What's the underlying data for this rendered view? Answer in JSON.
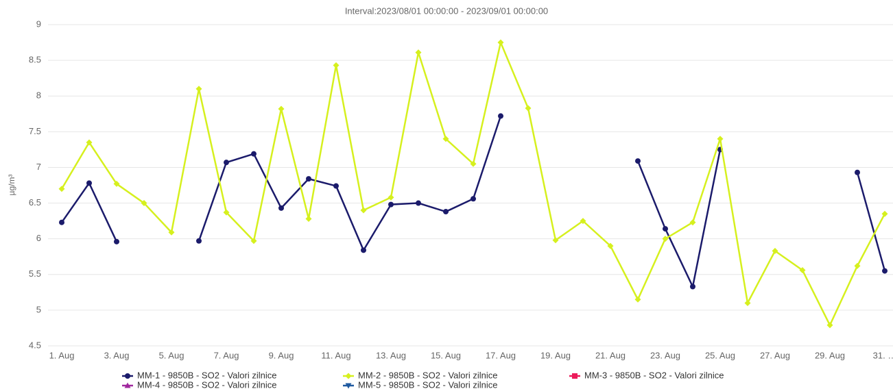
{
  "chart_data": {
    "type": "line",
    "title": "Interval:2023/08/01 00:00:00 - 2023/09/01 00:00:00",
    "y_label": "µg/m³",
    "categories": [
      "1. Aug",
      null,
      "3. Aug",
      null,
      "5. Aug",
      null,
      "7. Aug",
      null,
      "9. Aug",
      null,
      "11. Aug",
      null,
      "13. Aug",
      null,
      "15. Aug",
      null,
      "17. Aug",
      null,
      "19. Aug",
      null,
      "21. Aug",
      null,
      "23. Aug",
      null,
      "25. Aug",
      null,
      "27. Aug",
      null,
      "29. Aug",
      null,
      "31. …"
    ],
    "ylim": [
      4.5,
      9
    ],
    "yticks": [
      4.5,
      5,
      5.5,
      6,
      6.5,
      7,
      7.5,
      8,
      8.5,
      9
    ],
    "grid": true,
    "series": [
      {
        "name": "MM-1 - 9850B - SO2 - Valori zilnice",
        "color": "#1b1b6b",
        "marker": "circle",
        "values": [
          6.23,
          6.78,
          5.96,
          null,
          null,
          5.97,
          7.07,
          7.19,
          6.43,
          6.84,
          6.74,
          5.84,
          6.48,
          6.5,
          6.38,
          6.56,
          7.72,
          null,
          null,
          null,
          null,
          7.09,
          6.14,
          5.33,
          7.25,
          null,
          null,
          null,
          null,
          6.93,
          5.55
        ]
      },
      {
        "name": "MM-2 - 9850B - SO2 - Valori zilnice",
        "color": "#d6f01e",
        "marker": "diamond",
        "values": [
          6.7,
          7.35,
          6.77,
          6.5,
          6.09,
          8.1,
          6.37,
          5.97,
          7.82,
          6.28,
          8.43,
          6.4,
          6.58,
          8.61,
          7.4,
          7.05,
          8.75,
          7.83,
          5.98,
          6.25,
          5.9,
          5.15,
          6.0,
          6.23,
          7.4,
          5.1,
          5.83,
          5.56,
          4.79,
          5.62,
          6.35
        ]
      },
      {
        "name": "MM-3 - 9850B - SO2 - Valori zilnice",
        "color": "#ec1b5a",
        "marker": "square",
        "values": [
          null,
          null,
          null,
          null,
          null,
          null,
          null,
          null,
          null,
          null,
          null,
          null,
          null,
          null,
          null,
          null,
          null,
          null,
          null,
          null,
          null,
          null,
          null,
          null,
          null,
          null,
          null,
          null,
          null,
          null,
          null
        ]
      },
      {
        "name": "MM-4 - 9850B - SO2 - Valori zilnice",
        "color": "#a0289e",
        "marker": "triangle",
        "values": [
          null,
          null,
          null,
          null,
          null,
          null,
          null,
          null,
          null,
          null,
          null,
          null,
          null,
          null,
          null,
          null,
          null,
          null,
          null,
          null,
          null,
          null,
          null,
          null,
          null,
          null,
          null,
          null,
          null,
          null,
          null
        ]
      },
      {
        "name": "MM-5 - 9850B - SO2 - Valori zilnice",
        "color": "#1f5aa0",
        "marker": "triangle-down",
        "values": [
          null,
          null,
          null,
          null,
          null,
          null,
          null,
          null,
          null,
          null,
          null,
          null,
          null,
          null,
          null,
          null,
          null,
          null,
          null,
          null,
          null,
          null,
          null,
          null,
          null,
          null,
          null,
          null,
          null,
          null,
          null
        ]
      }
    ]
  }
}
